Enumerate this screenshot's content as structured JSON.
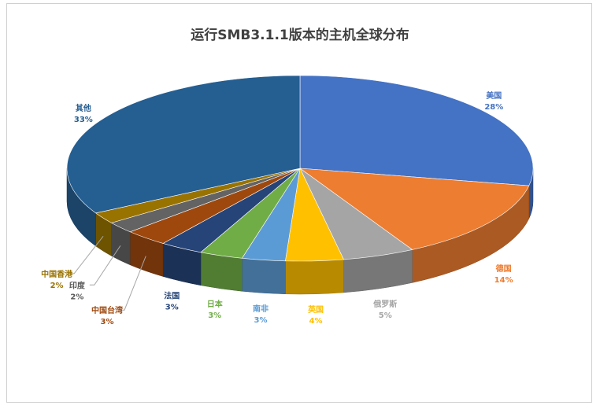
{
  "chart_data": {
    "type": "pie",
    "title": "运行SMB3.1.1版本的主机全球分布",
    "slices": [
      {
        "label": "美国",
        "value": 28,
        "display": "28%",
        "color": "#4472c4"
      },
      {
        "label": "德国",
        "value": 14,
        "display": "14%",
        "color": "#ed7d31"
      },
      {
        "label": "俄罗斯",
        "value": 5,
        "display": "5%",
        "color": "#a5a5a5"
      },
      {
        "label": "英国",
        "value": 4,
        "display": "4%",
        "color": "#ffc000"
      },
      {
        "label": "南非",
        "value": 3,
        "display": "3%",
        "color": "#5b9bd5"
      },
      {
        "label": "日本",
        "value": 3,
        "display": "3%",
        "color": "#70ad47"
      },
      {
        "label": "法国",
        "value": 3,
        "display": "3%",
        "color": "#264478"
      },
      {
        "label": "中国台湾",
        "value": 3,
        "display": "3%",
        "color": "#9e480e"
      },
      {
        "label": "印度",
        "value": 2,
        "display": "2%",
        "color": "#636363"
      },
      {
        "label": "中国香港",
        "value": 2,
        "display": "2%",
        "color": "#997300"
      },
      {
        "label": "其他",
        "value": 33,
        "display": "33%",
        "color": "#255e91"
      }
    ]
  }
}
